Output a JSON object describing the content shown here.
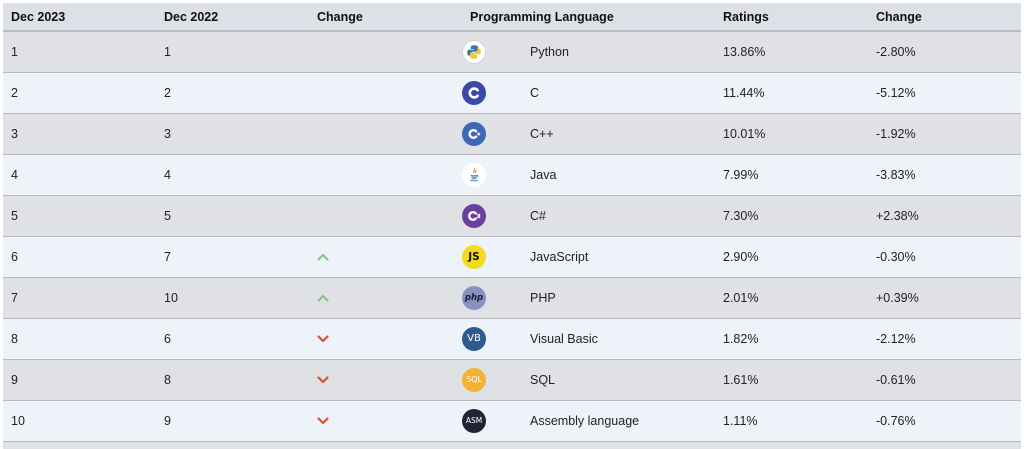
{
  "headers": {
    "rank_2023": "Dec 2023",
    "rank_2022": "Dec 2022",
    "change": "Change",
    "language": "Programming Language",
    "ratings": "Ratings",
    "ratings_change": "Change"
  },
  "rows": [
    {
      "rank_2023": "1",
      "rank_2022": "1",
      "trend": "none",
      "icon": "python-icon",
      "language": "Python",
      "ratings": "13.86%",
      "change": "-2.80%"
    },
    {
      "rank_2023": "2",
      "rank_2022": "2",
      "trend": "none",
      "icon": "c-icon",
      "language": "C",
      "ratings": "11.44%",
      "change": "-5.12%"
    },
    {
      "rank_2023": "3",
      "rank_2022": "3",
      "trend": "none",
      "icon": "cpp-icon",
      "language": "C++",
      "ratings": "10.01%",
      "change": "-1.92%"
    },
    {
      "rank_2023": "4",
      "rank_2022": "4",
      "trend": "none",
      "icon": "java-icon",
      "language": "Java",
      "ratings": "7.99%",
      "change": "-3.83%"
    },
    {
      "rank_2023": "5",
      "rank_2022": "5",
      "trend": "none",
      "icon": "csharp-icon",
      "language": "C#",
      "ratings": "7.30%",
      "change": "+2.38%"
    },
    {
      "rank_2023": "6",
      "rank_2022": "7",
      "trend": "up",
      "icon": "javascript-icon",
      "language": "JavaScript",
      "ratings": "2.90%",
      "change": "-0.30%"
    },
    {
      "rank_2023": "7",
      "rank_2022": "10",
      "trend": "up",
      "icon": "php-icon",
      "language": "PHP",
      "ratings": "2.01%",
      "change": "+0.39%"
    },
    {
      "rank_2023": "8",
      "rank_2022": "6",
      "trend": "down",
      "icon": "visual-basic-icon",
      "language": "Visual Basic",
      "ratings": "1.82%",
      "change": "-2.12%"
    },
    {
      "rank_2023": "9",
      "rank_2022": "8",
      "trend": "down",
      "icon": "sql-icon",
      "language": "SQL",
      "ratings": "1.61%",
      "change": "-0.61%"
    },
    {
      "rank_2023": "10",
      "rank_2022": "9",
      "trend": "down",
      "icon": "assembly-icon",
      "language": "Assembly language",
      "ratings": "1.11%",
      "change": "-0.76%"
    }
  ],
  "logo_text": {
    "javascript": "JS",
    "php": "php",
    "visual_basic": "VB",
    "sql": "SQL",
    "assembly": "ASM"
  },
  "colors": {
    "up_arrow": "#8cc48a",
    "down_arrow": "#d9542b",
    "row_dark": "#dfe1e5",
    "row_light": "#eef3f9",
    "header_bg": "#dde0e6"
  }
}
